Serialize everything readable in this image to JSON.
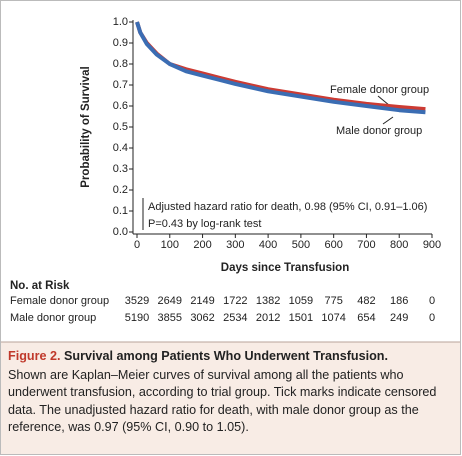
{
  "chart_data": {
    "type": "line",
    "y_label": "Probability of Survival",
    "x_label": "Days since Transfusion",
    "xlim": [
      0,
      900
    ],
    "ylim": [
      0,
      1
    ],
    "xticks": [
      0,
      100,
      200,
      300,
      400,
      500,
      600,
      700,
      800,
      900
    ],
    "yticks": [
      {
        "value": 0,
        "label": "0.0"
      },
      0.1,
      0.2,
      0.3,
      0.4,
      0.5,
      0.6,
      0.7,
      0.8,
      0.9,
      {
        "value": 1,
        "label": "1.0"
      }
    ],
    "x": [
      0,
      10,
      30,
      60,
      100,
      150,
      200,
      250,
      300,
      400,
      500,
      600,
      700,
      800,
      880
    ],
    "series": [
      {
        "name": "Female donor group",
        "color": "#cc3b33",
        "values": [
          1.0,
          0.95,
          0.9,
          0.85,
          0.8,
          0.775,
          0.755,
          0.735,
          0.715,
          0.68,
          0.655,
          0.63,
          0.61,
          0.595,
          0.585
        ]
      },
      {
        "name": "Male donor group",
        "color": "#3b6db3",
        "values": [
          1.0,
          0.95,
          0.895,
          0.845,
          0.8,
          0.765,
          0.745,
          0.725,
          0.705,
          0.67,
          0.645,
          0.62,
          0.6,
          0.58,
          0.57
        ]
      }
    ],
    "annotations": [
      "Adjusted hazard ratio for death, 0.98 (95% CI, 0.91–1.06)",
      "P=0.43 by log-rank test"
    ],
    "risk_table": {
      "title": "No. at Risk",
      "rows": [
        {
          "name": "Female donor group",
          "values": [
            3529,
            2649,
            2149,
            1722,
            1382,
            1059,
            775,
            482,
            186,
            0
          ]
        },
        {
          "name": "Male donor group",
          "values": [
            5190,
            3855,
            3062,
            2534,
            2012,
            1501,
            1074,
            654,
            249,
            0
          ]
        }
      ]
    }
  },
  "caption": {
    "figure_label": "Figure 2.",
    "title": "Survival among Patients Who Underwent Transfusion.",
    "text": "Shown are Kaplan–Meier curves of survival among all the patients who underwent transfusion, according to trial group. Tick marks indicate censored data. The unadjusted hazard ratio for death, with male donor group as the reference, was 0.97 (95% CI, 0.90 to 1.05)."
  }
}
